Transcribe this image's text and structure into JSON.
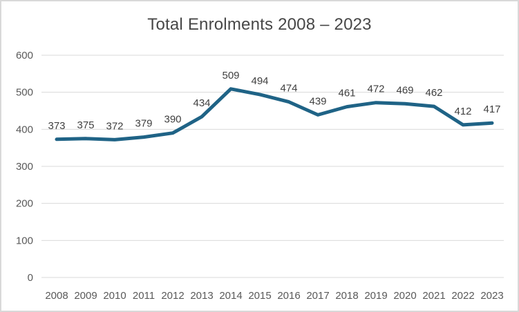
{
  "frame": {
    "background_color": "#ffffff",
    "border_color": "#d9d9d9"
  },
  "chart_data": {
    "type": "line",
    "title": "Total Enrolments 2008 – 2023",
    "categories": [
      "2008",
      "2009",
      "2010",
      "2011",
      "2012",
      "2013",
      "2014",
      "2015",
      "2016",
      "2017",
      "2018",
      "2019",
      "2020",
      "2021",
      "2022",
      "2023"
    ],
    "series": [
      {
        "values": [
          373,
          375,
          372,
          379,
          390,
          434,
          509,
          494,
          474,
          439,
          461,
          472,
          469,
          462,
          412,
          417
        ],
        "color": "#1f6386",
        "stroke_width": 5
      }
    ],
    "xlabel": "",
    "ylabel": "",
    "ylim": [
      0,
      600
    ],
    "yticks": [
      0,
      100,
      200,
      300,
      400,
      500,
      600
    ],
    "grid": true,
    "gridline_color": "#d9d9d9",
    "axis_tick_color": "#595959",
    "data_labels": true,
    "data_label_color": "#404040",
    "title_color": "#474747",
    "legend_position": "none"
  }
}
